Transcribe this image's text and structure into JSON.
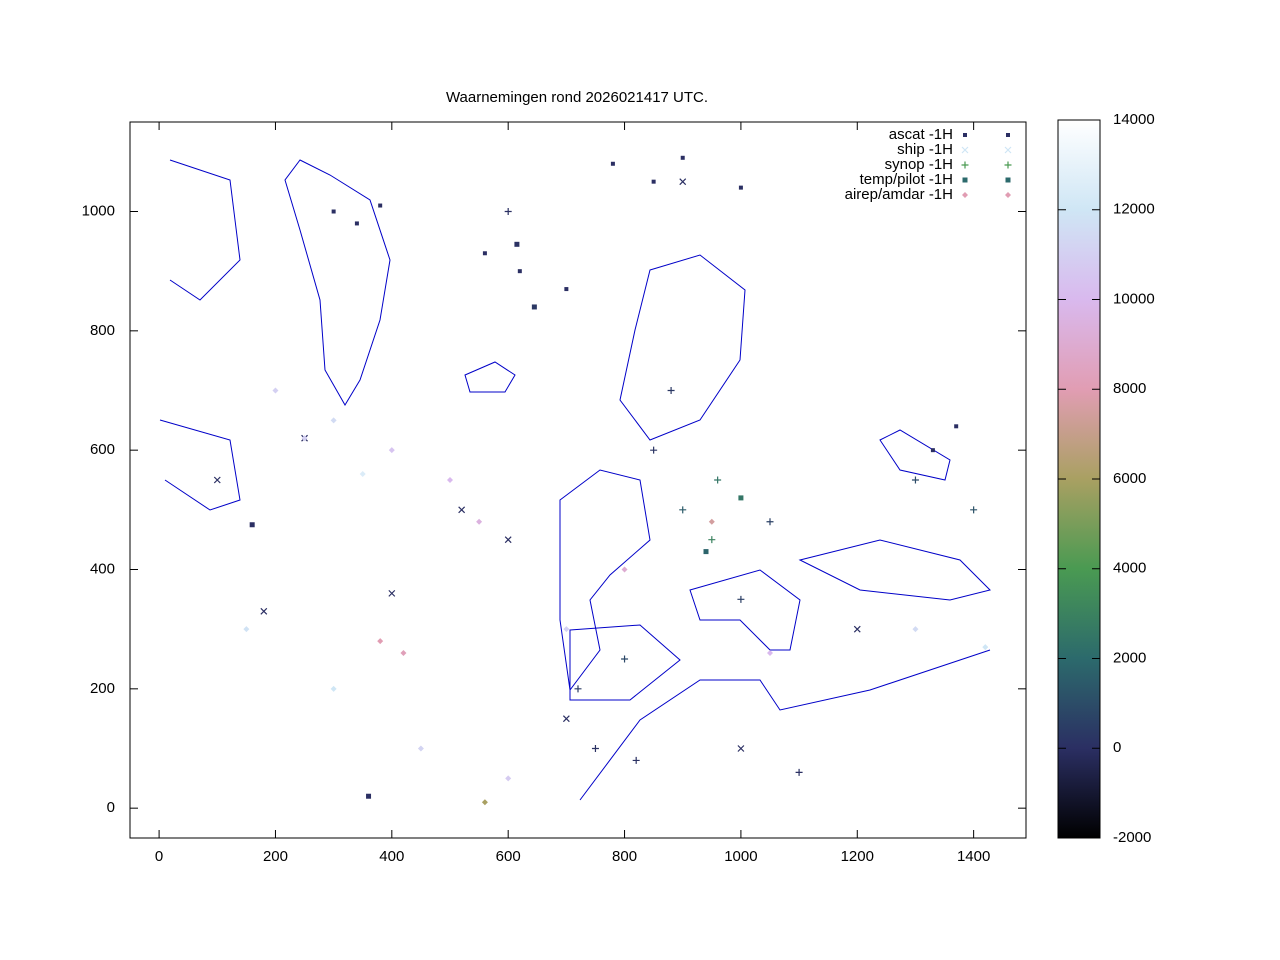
{
  "chart_data": {
    "type": "scatter",
    "title": "Waarnemingen rond 2026021417 UTC.",
    "xlim": [
      -50,
      1490
    ],
    "xticks": [
      0,
      200,
      400,
      600,
      800,
      1000,
      1200,
      1400
    ],
    "ylim": [
      -50,
      1150
    ],
    "yticks": [
      0,
      200,
      400,
      600,
      800,
      1000
    ],
    "cblim": [
      -2000,
      14000
    ],
    "cbticks": [
      -2000,
      0,
      2000,
      4000,
      6000,
      8000,
      10000,
      12000,
      14000
    ],
    "colormap": [
      "#000000",
      "#2b2f63",
      "#2c6a6c",
      "#4a9a52",
      "#a9a062",
      "#e19db3",
      "#d9b9ee",
      "#cfe6f5",
      "#ffffff"
    ],
    "legend": "top right",
    "series": [
      {
        "name": "ascat -1H",
        "marker": "dot",
        "color": "#2b2f63",
        "x": [
          300,
          340,
          380,
          560,
          620,
          700,
          780,
          850,
          1000,
          1330,
          1370,
          900
        ],
        "y": [
          1000,
          980,
          1010,
          930,
          900,
          870,
          1080,
          1050,
          1040,
          600,
          640,
          1090
        ],
        "z": [
          0,
          0,
          0,
          0,
          0,
          0,
          0,
          0,
          0,
          0,
          0,
          0
        ]
      },
      {
        "name": "ship -1H",
        "marker": "cross",
        "color": "#cfe6f5",
        "x": [
          900,
          400,
          250,
          600,
          1200,
          100,
          700,
          1000,
          180,
          520
        ],
        "y": [
          1050,
          360,
          620,
          450,
          300,
          550,
          150,
          100,
          330,
          500
        ],
        "z": [
          0,
          0,
          0,
          0,
          0,
          0,
          0,
          0,
          0,
          0
        ]
      },
      {
        "name": "synop -1H",
        "marker": "plus",
        "color": "#4a9a52",
        "x": [
          850,
          900,
          950,
          1000,
          800,
          750,
          1100,
          1400,
          1300,
          600,
          880,
          960,
          1050,
          720,
          820
        ],
        "y": [
          600,
          500,
          450,
          350,
          250,
          100,
          60,
          500,
          550,
          1000,
          700,
          550,
          480,
          200,
          80
        ],
        "z": [
          200,
          1500,
          3000,
          500,
          800,
          100,
          50,
          1200,
          900,
          20,
          300,
          2500,
          600,
          400,
          100
        ]
      },
      {
        "name": "temp/pilot -1H",
        "marker": "square",
        "color": "#2c6a6c",
        "x": [
          360,
          160,
          615,
          1000,
          940,
          645
        ],
        "y": [
          20,
          475,
          945,
          520,
          430,
          840
        ],
        "z": [
          0,
          0,
          100,
          2500,
          1800,
          300
        ]
      },
      {
        "name": "airep/amdar -1H",
        "marker": "diamond",
        "color": "#e19db3",
        "x": [
          200,
          300,
          400,
          500,
          150,
          300,
          450,
          600,
          800,
          1300,
          950,
          380,
          420,
          250,
          350,
          550,
          700,
          1050,
          1420,
          560
        ],
        "y": [
          700,
          650,
          600,
          550,
          300,
          200,
          100,
          50,
          400,
          300,
          480,
          280,
          260,
          620,
          560,
          480,
          300,
          260,
          270,
          10
        ],
        "z": [
          11000,
          11500,
          10500,
          10000,
          11800,
          12000,
          11200,
          10800,
          9000,
          11500,
          7500,
          8000,
          8200,
          11000,
          12500,
          9500,
          11000,
          10000,
          12000,
          6000
        ]
      }
    ]
  }
}
